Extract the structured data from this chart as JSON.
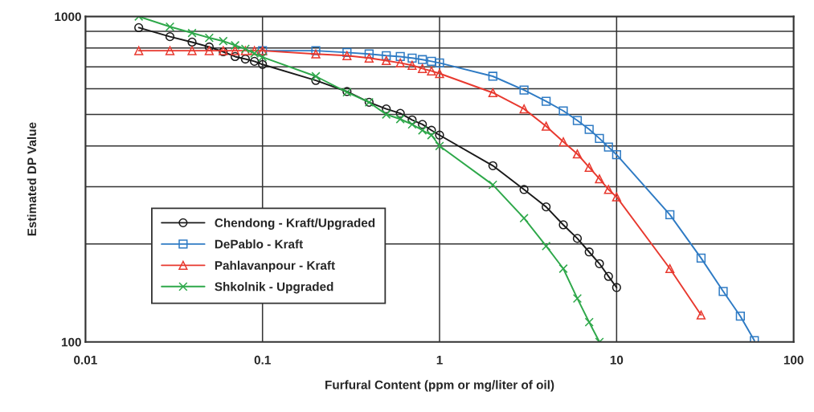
{
  "chart_data": {
    "type": "line",
    "xlabel": "Furfural Content (ppm or mg/liter of oil)",
    "ylabel": "Estimated DP Value",
    "log": "xy",
    "xlim": [
      0.01,
      100
    ],
    "xticks": [
      0.01,
      0.1,
      1,
      10,
      100
    ],
    "ylim": [
      100,
      1000
    ],
    "yticks": [
      100,
      {
        "value": 200,
        "label": null
      },
      {
        "value": 300,
        "label": null
      },
      {
        "value": 400,
        "label": null
      },
      {
        "value": 500,
        "label": null
      },
      {
        "value": 600,
        "label": null
      },
      {
        "value": 700,
        "label": null
      },
      {
        "value": 800,
        "label": null
      },
      {
        "value": 900,
        "label": null
      },
      1000
    ],
    "grid": true,
    "legend": "bottom left",
    "series": [
      {
        "name": "Chendong - Kraft/Upgraded",
        "color": "#1a1a1a",
        "marker": "circle",
        "x": [
          0.02,
          0.03,
          0.04,
          0.05,
          0.06,
          0.07,
          0.08,
          0.09,
          0.1,
          0.2,
          0.3,
          0.4,
          0.5,
          0.6,
          0.7,
          0.8,
          0.9,
          1,
          2,
          3,
          4,
          5,
          6,
          7,
          8,
          9,
          10
        ],
        "values": [
          924,
          867,
          834,
          806,
          779,
          753,
          740,
          728,
          712,
          636,
          588,
          545,
          520,
          504,
          481,
          466,
          447,
          432,
          348,
          294,
          260,
          229,
          208,
          189,
          174,
          159,
          147
        ]
      },
      {
        "name": "DePablo - Kraft",
        "color": "#2f7bc4",
        "marker": "square",
        "x": [
          0.1,
          0.2,
          0.3,
          0.4,
          0.5,
          0.6,
          0.7,
          0.8,
          0.9,
          1,
          2,
          3,
          4,
          5,
          6,
          7,
          8,
          9,
          10,
          20,
          30,
          40,
          50,
          60
        ],
        "values": [
          785,
          785,
          775,
          767,
          758,
          753,
          745,
          737,
          728,
          720,
          655,
          594,
          549,
          513,
          479,
          450,
          422,
          397,
          376,
          246,
          181,
          143,
          120,
          101
        ]
      },
      {
        "name": "Pahlavanpour - Kraft",
        "color": "#e8392f",
        "marker": "triangle",
        "x": [
          0.02,
          0.03,
          0.04,
          0.05,
          0.06,
          0.07,
          0.08,
          0.09,
          0.1,
          0.2,
          0.3,
          0.4,
          0.5,
          0.6,
          0.7,
          0.8,
          0.9,
          1,
          2,
          3,
          4,
          5,
          6,
          7,
          8,
          9,
          10,
          20,
          30
        ],
        "values": [
          785,
          785,
          785,
          785,
          785,
          785,
          785,
          785,
          785,
          767,
          758,
          745,
          732,
          720,
          708,
          692,
          680,
          668,
          583,
          520,
          460,
          412,
          378,
          344,
          317,
          294,
          279,
          168,
          121
        ]
      },
      {
        "name": "Shkolnik - Upgraded",
        "color": "#2ea84a",
        "marker": "cross",
        "x": [
          0.02,
          0.03,
          0.04,
          0.05,
          0.06,
          0.07,
          0.08,
          0.09,
          0.1,
          0.2,
          0.3,
          0.4,
          0.5,
          0.6,
          0.7,
          0.8,
          0.9,
          1,
          2,
          3,
          4,
          5,
          6,
          7,
          8
        ],
        "values": [
          1000,
          930,
          890,
          860,
          840,
          815,
          795,
          770,
          750,
          655,
          585,
          545,
          500,
          484,
          466,
          447,
          432,
          400,
          304,
          240,
          197,
          168,
          136,
          115,
          100
        ]
      }
    ]
  }
}
